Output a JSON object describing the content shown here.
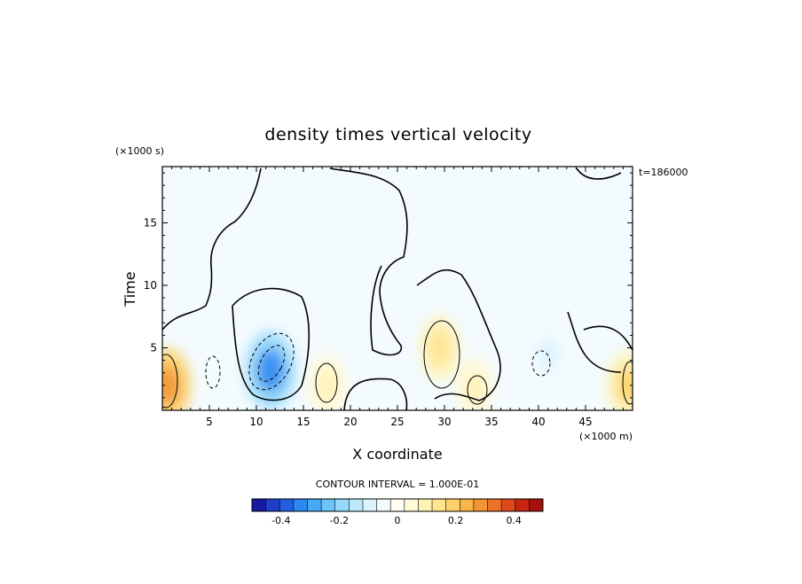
{
  "chart_data": {
    "type": "heatmap",
    "title": "density times vertical velocity",
    "xlabel": "X coordinate",
    "ylabel": "Time",
    "x_unit_label": "(×1000 m)",
    "y_unit_label": "(×1000 s)",
    "time_stamp": "t=186000",
    "xlim": [
      0,
      50
    ],
    "ylim": [
      0,
      19.5
    ],
    "x_ticks": [
      5,
      10,
      15,
      20,
      25,
      30,
      35,
      40,
      45
    ],
    "x_tick_labels": [
      "5",
      "10",
      "15",
      "20",
      "25",
      "30",
      "35",
      "40",
      "45"
    ],
    "y_ticks": [
      5,
      10,
      15
    ],
    "y_tick_labels": [
      "5",
      "10",
      "15"
    ],
    "contour_interval_label": "CONTOUR INTERVAL = 1.000E-01",
    "colorbar": {
      "range": [
        -0.5,
        0.5
      ],
      "ticks": [
        -0.4,
        -0.2,
        0,
        0.2,
        0.4
      ],
      "tick_labels": [
        "-0.4",
        "-0.2",
        "0",
        "0.2",
        "0.4"
      ],
      "colors": [
        "#1a1aa0",
        "#1f3ec8",
        "#2260e0",
        "#2d88f0",
        "#49a8f5",
        "#6cc3f8",
        "#95d8fb",
        "#bde8fc",
        "#dcf3fd",
        "#f3fbfe",
        "#fffff4",
        "#fffad8",
        "#fff2b5",
        "#ffe38e",
        "#fdd06a",
        "#f8b54a",
        "#f29536",
        "#ea7128",
        "#dc4a1c",
        "#c82413",
        "#a5100c"
      ]
    },
    "features": [
      {
        "x": 0.5,
        "y": 2.0,
        "value": 0.3
      },
      {
        "x": 11.5,
        "y": 3.2,
        "value": -0.35
      },
      {
        "x": 17.5,
        "y": 2.0,
        "value": 0.12
      },
      {
        "x": 29.5,
        "y": 5.0,
        "value": 0.15
      },
      {
        "x": 33.2,
        "y": 1.8,
        "value": 0.1
      },
      {
        "x": 41.0,
        "y": 4.5,
        "value": -0.1
      },
      {
        "x": 49.5,
        "y": 2.0,
        "value": 0.2
      }
    ]
  }
}
